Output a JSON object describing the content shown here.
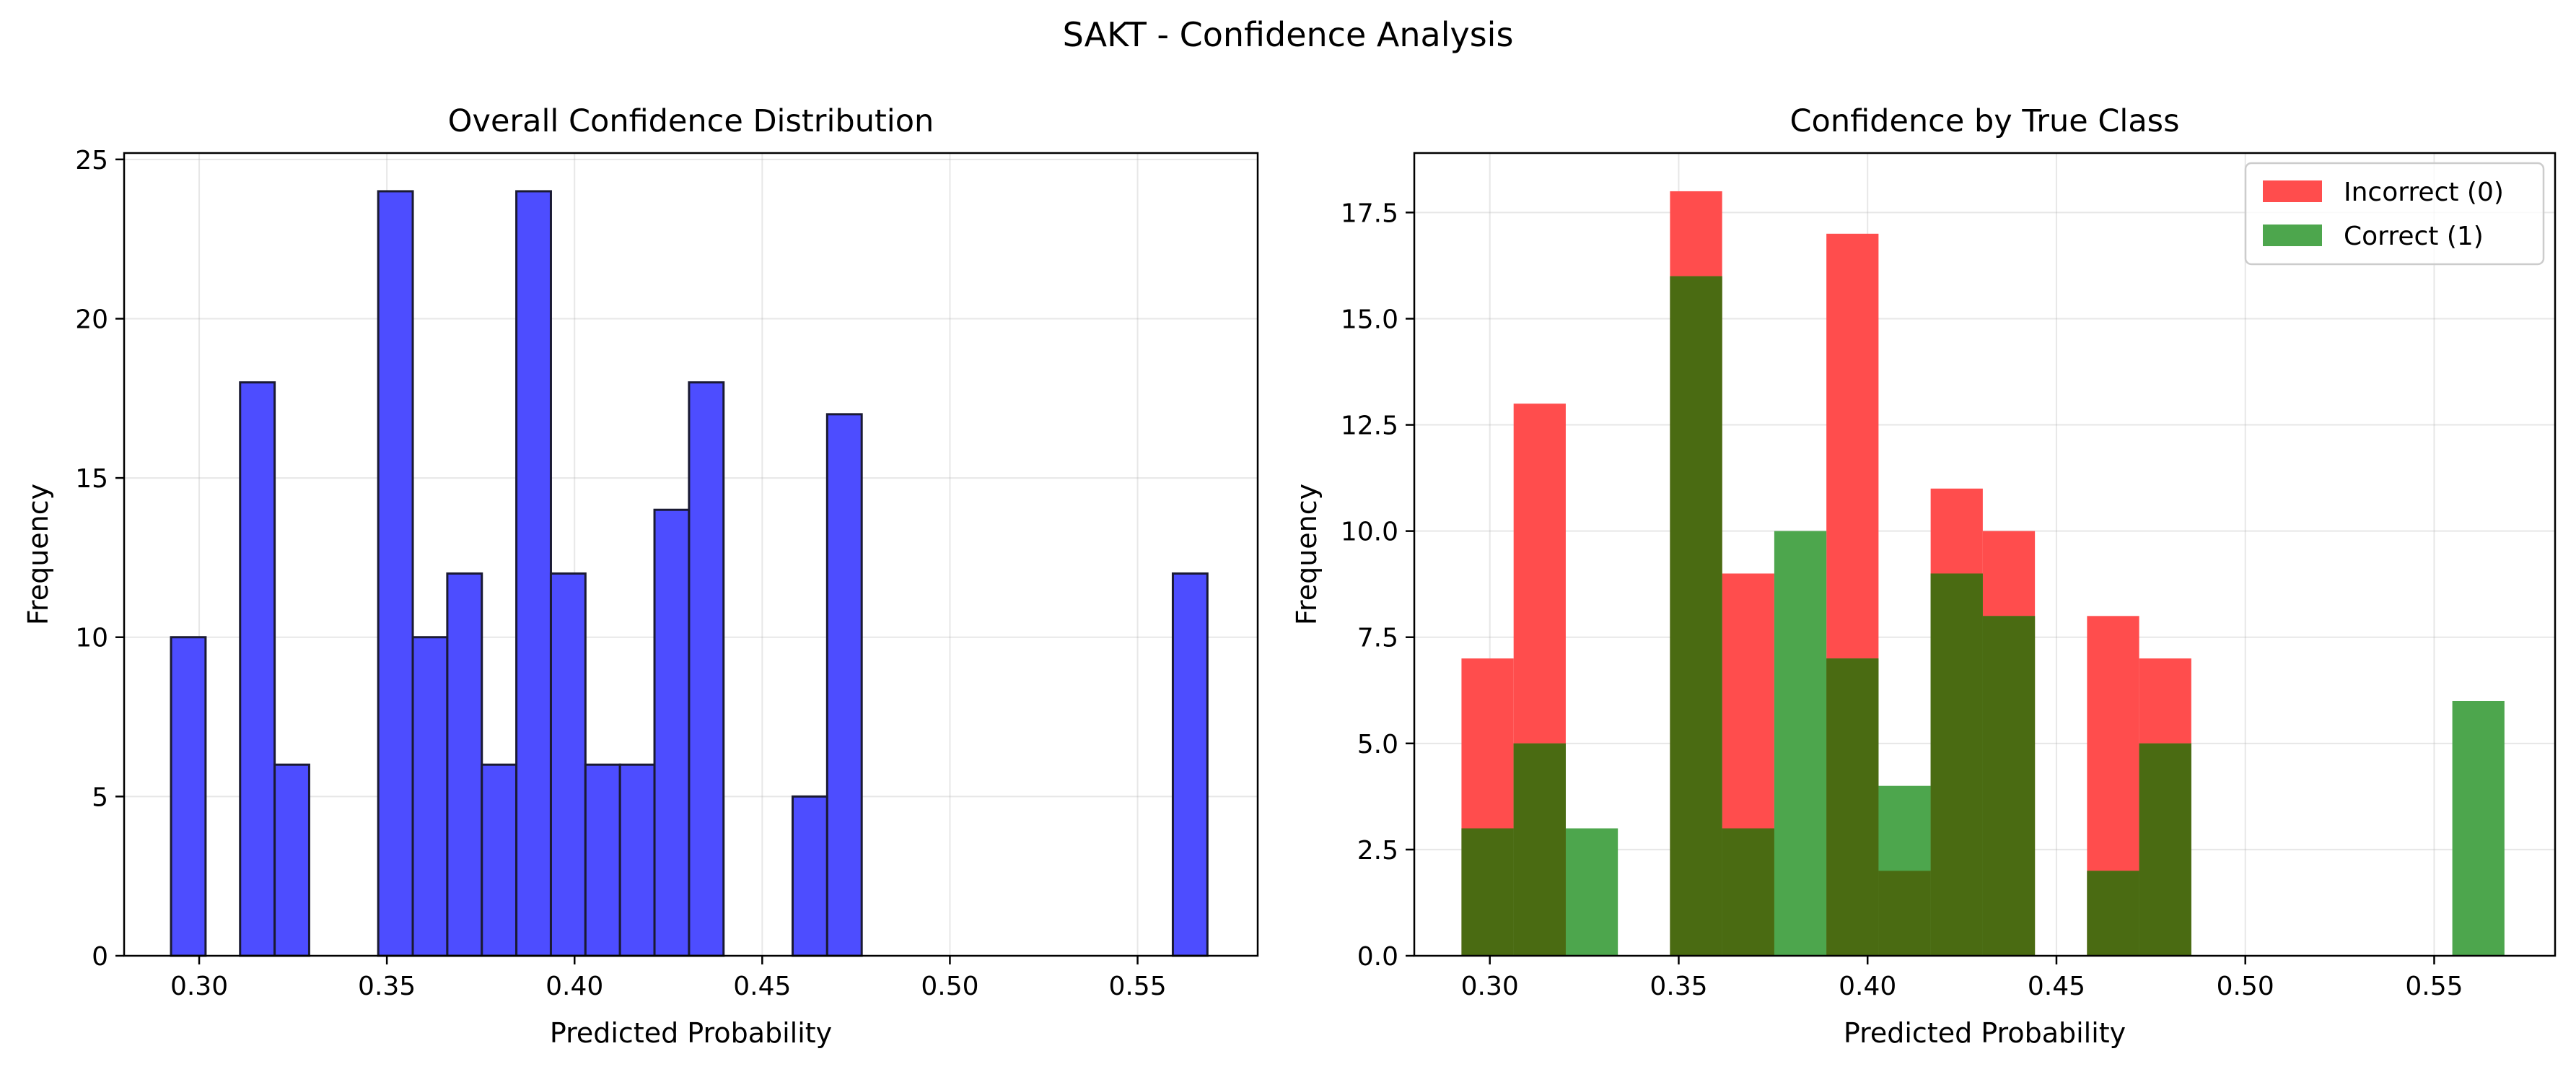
{
  "suptitle": "SAKT - Confidence Analysis",
  "chart_data": [
    {
      "type": "bar",
      "subtype": "histogram",
      "title": "Overall Confidence Distribution",
      "xlabel": "Predicted Probability",
      "ylabel": "Frequency",
      "xlim": [
        0.28,
        0.582
      ],
      "ylim": [
        0,
        25.2
      ],
      "xticks": [
        0.3,
        0.35,
        0.4,
        0.45,
        0.5,
        0.55
      ],
      "xtick_labels": [
        "0.30",
        "0.35",
        "0.40",
        "0.45",
        "0.50",
        "0.55"
      ],
      "yticks": [
        0,
        5,
        10,
        15,
        20,
        25
      ],
      "ytick_labels": [
        "0",
        "5",
        "10",
        "15",
        "20",
        "25"
      ],
      "grid": true,
      "color": "#4d4dff",
      "edge_color": "#1a1a33",
      "series": [
        {
          "name": "All predictions",
          "bins": [
            {
              "x0": 0.2925,
              "x1": 0.3017,
              "value": 10
            },
            {
              "x0": 0.3109,
              "x1": 0.3201,
              "value": 18
            },
            {
              "x0": 0.3201,
              "x1": 0.3293,
              "value": 6
            },
            {
              "x0": 0.3477,
              "x1": 0.3569,
              "value": 24
            },
            {
              "x0": 0.3569,
              "x1": 0.3661,
              "value": 10
            },
            {
              "x0": 0.3661,
              "x1": 0.3753,
              "value": 12
            },
            {
              "x0": 0.3753,
              "x1": 0.3845,
              "value": 6
            },
            {
              "x0": 0.3845,
              "x1": 0.3937,
              "value": 24
            },
            {
              "x0": 0.3937,
              "x1": 0.4029,
              "value": 12
            },
            {
              "x0": 0.4029,
              "x1": 0.4121,
              "value": 6
            },
            {
              "x0": 0.4121,
              "x1": 0.4213,
              "value": 6
            },
            {
              "x0": 0.4213,
              "x1": 0.4305,
              "value": 14
            },
            {
              "x0": 0.4305,
              "x1": 0.4397,
              "value": 18
            },
            {
              "x0": 0.4581,
              "x1": 0.4673,
              "value": 5
            },
            {
              "x0": 0.4673,
              "x1": 0.4765,
              "value": 17
            },
            {
              "x0": 0.5594,
              "x1": 0.5686,
              "value": 12
            }
          ]
        }
      ]
    },
    {
      "type": "bar",
      "subtype": "histogram-overlay",
      "title": "Confidence by True Class",
      "xlabel": "Predicted Probability",
      "ylabel": "Frequency",
      "xlim": [
        0.28,
        0.582
      ],
      "ylim": [
        0,
        18.9
      ],
      "xticks": [
        0.3,
        0.35,
        0.4,
        0.45,
        0.5,
        0.55
      ],
      "xtick_labels": [
        "0.30",
        "0.35",
        "0.40",
        "0.45",
        "0.50",
        "0.55"
      ],
      "yticks": [
        0.0,
        2.5,
        5.0,
        7.5,
        10.0,
        12.5,
        15.0,
        17.5
      ],
      "ytick_labels": [
        "0.0",
        "2.5",
        "5.0",
        "7.5",
        "10.0",
        "12.5",
        "15.0",
        "17.5"
      ],
      "grid": true,
      "legend_position": "top-right",
      "overlap_color": "#4a6b12",
      "series": [
        {
          "name": "Incorrect (0)",
          "color": "#ff4d4d",
          "bins": [
            {
              "x0": 0.2925,
              "x1": 0.3063,
              "value": 7
            },
            {
              "x0": 0.3063,
              "x1": 0.3201,
              "value": 13
            },
            {
              "x0": 0.3477,
              "x1": 0.3615,
              "value": 18
            },
            {
              "x0": 0.3615,
              "x1": 0.3753,
              "value": 9
            },
            {
              "x0": 0.3891,
              "x1": 0.4029,
              "value": 17
            },
            {
              "x0": 0.4029,
              "x1": 0.4167,
              "value": 2
            },
            {
              "x0": 0.4167,
              "x1": 0.4305,
              "value": 11
            },
            {
              "x0": 0.4305,
              "x1": 0.4443,
              "value": 10
            },
            {
              "x0": 0.4581,
              "x1": 0.4719,
              "value": 8
            },
            {
              "x0": 0.4719,
              "x1": 0.4857,
              "value": 7
            }
          ]
        },
        {
          "name": "Correct (1)",
          "color": "#4da64d",
          "bins": [
            {
              "x0": 0.2925,
              "x1": 0.3063,
              "value": 3
            },
            {
              "x0": 0.3063,
              "x1": 0.3201,
              "value": 5
            },
            {
              "x0": 0.3201,
              "x1": 0.3339,
              "value": 3
            },
            {
              "x0": 0.3477,
              "x1": 0.3615,
              "value": 16
            },
            {
              "x0": 0.3615,
              "x1": 0.3753,
              "value": 3
            },
            {
              "x0": 0.3753,
              "x1": 0.3891,
              "value": 10
            },
            {
              "x0": 0.3891,
              "x1": 0.4029,
              "value": 7
            },
            {
              "x0": 0.4029,
              "x1": 0.4167,
              "value": 4
            },
            {
              "x0": 0.4167,
              "x1": 0.4305,
              "value": 9
            },
            {
              "x0": 0.4305,
              "x1": 0.4443,
              "value": 8
            },
            {
              "x0": 0.4581,
              "x1": 0.4719,
              "value": 2
            },
            {
              "x0": 0.4719,
              "x1": 0.4857,
              "value": 5
            },
            {
              "x0": 0.5548,
              "x1": 0.5686,
              "value": 6
            }
          ]
        }
      ]
    }
  ]
}
